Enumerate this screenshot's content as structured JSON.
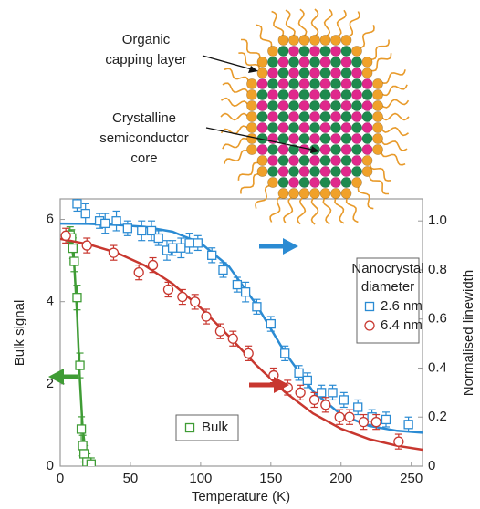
{
  "chart_data": {
    "type": "scatter",
    "xlabel": "Temperature (K)",
    "ylabel": "Bulk signal",
    "y2label": "Normalised linewidth",
    "xlim": [
      0,
      258
    ],
    "xticks": [
      0,
      50,
      100,
      150,
      200,
      250
    ],
    "ylim": [
      0,
      6.5
    ],
    "yticks": [
      0,
      2,
      4,
      6
    ],
    "y2lim": [
      0,
      1.09
    ],
    "y2ticks": [
      0,
      0.2,
      0.4,
      0.6,
      0.8,
      {
        "value": 1,
        "label": "1.0"
      }
    ],
    "legend_title": [
      "Nanocrystal",
      "diameter"
    ],
    "annotations": [
      [
        "Organic",
        "capping layer"
      ],
      [
        "Crystalline",
        "semiconductor",
        "core"
      ]
    ],
    "series": [
      {
        "name": "Bulk",
        "color": "#3f9c35",
        "marker": "square",
        "x": [
          7,
          8,
          9,
          10,
          12,
          14,
          15,
          16,
          17,
          19,
          22
        ],
        "values": [
          5.62,
          5.55,
          5.3,
          4.98,
          4.1,
          2.45,
          0.9,
          0.5,
          0.3,
          0.1,
          0.05
        ],
        "errors": [
          0.2,
          0.2,
          0.25,
          0.25,
          0.3,
          0.3,
          0.3,
          0.25,
          0.2,
          0.2,
          0.15
        ],
        "fit_x": [
          5,
          8,
          10,
          12,
          14,
          16,
          18,
          20,
          25
        ],
        "fit_values": [
          5.73,
          5.46,
          4.88,
          3.69,
          2.12,
          0.92,
          0.34,
          0.12,
          0.01
        ]
      },
      {
        "name": "2.6 nm",
        "color": "#2b8bd3",
        "marker": "square",
        "axis": "y2",
        "x": [
          12,
          18,
          28,
          32,
          40,
          48,
          58,
          65,
          70,
          76,
          80,
          86,
          92,
          98,
          108,
          116,
          126,
          132,
          140,
          150,
          160,
          170,
          176,
          186,
          194,
          202,
          212,
          222,
          232,
          248
        ],
        "values": [
          1.07,
          1.03,
          1.0,
          0.99,
          1.0,
          0.97,
          0.96,
          0.96,
          0.93,
          0.88,
          0.89,
          0.89,
          0.91,
          0.91,
          0.86,
          0.8,
          0.74,
          0.71,
          0.65,
          0.58,
          0.46,
          0.38,
          0.35,
          0.3,
          0.3,
          0.27,
          0.24,
          0.2,
          0.19,
          0.17
        ],
        "errors": [
          0.03,
          0.04,
          0.03,
          0.04,
          0.04,
          0.03,
          0.04,
          0.04,
          0.03,
          0.04,
          0.03,
          0.04,
          0.04,
          0.03,
          0.03,
          0.03,
          0.03,
          0.04,
          0.03,
          0.03,
          0.03,
          0.03,
          0.03,
          0.03,
          0.03,
          0.03,
          0.03,
          0.03,
          0.03,
          0.03
        ],
        "fit_x": [
          0,
          20,
          40,
          60,
          80,
          100,
          120,
          140,
          160,
          180,
          200,
          220,
          240,
          258
        ],
        "fit_values": [
          0.989,
          0.988,
          0.984,
          0.976,
          0.956,
          0.91,
          0.815,
          0.656,
          0.464,
          0.305,
          0.21,
          0.164,
          0.144,
          0.136
        ]
      },
      {
        "name": "6.4 nm",
        "color": "#c8372f",
        "marker": "circle",
        "axis": "y2",
        "x": [
          4,
          19,
          38,
          56,
          66,
          77,
          87,
          96,
          104,
          114,
          123,
          134,
          152,
          162,
          171,
          181,
          189,
          199,
          206,
          216,
          225,
          241
        ],
        "values": [
          0.94,
          0.9,
          0.87,
          0.79,
          0.82,
          0.72,
          0.69,
          0.67,
          0.61,
          0.55,
          0.52,
          0.46,
          0.37,
          0.32,
          0.3,
          0.27,
          0.25,
          0.2,
          0.2,
          0.18,
          0.18,
          0.1
        ],
        "errors": [
          0.03,
          0.03,
          0.03,
          0.03,
          0.03,
          0.03,
          0.03,
          0.03,
          0.03,
          0.03,
          0.03,
          0.03,
          0.03,
          0.03,
          0.03,
          0.03,
          0.03,
          0.03,
          0.03,
          0.03,
          0.03,
          0.03
        ],
        "fit_x": [
          0,
          20,
          40,
          60,
          80,
          100,
          120,
          140,
          160,
          180,
          200,
          220,
          240,
          258
        ],
        "fit_values": [
          0.927,
          0.905,
          0.871,
          0.819,
          0.744,
          0.646,
          0.53,
          0.41,
          0.302,
          0.215,
          0.152,
          0.11,
          0.083,
          0.067
        ]
      }
    ]
  }
}
